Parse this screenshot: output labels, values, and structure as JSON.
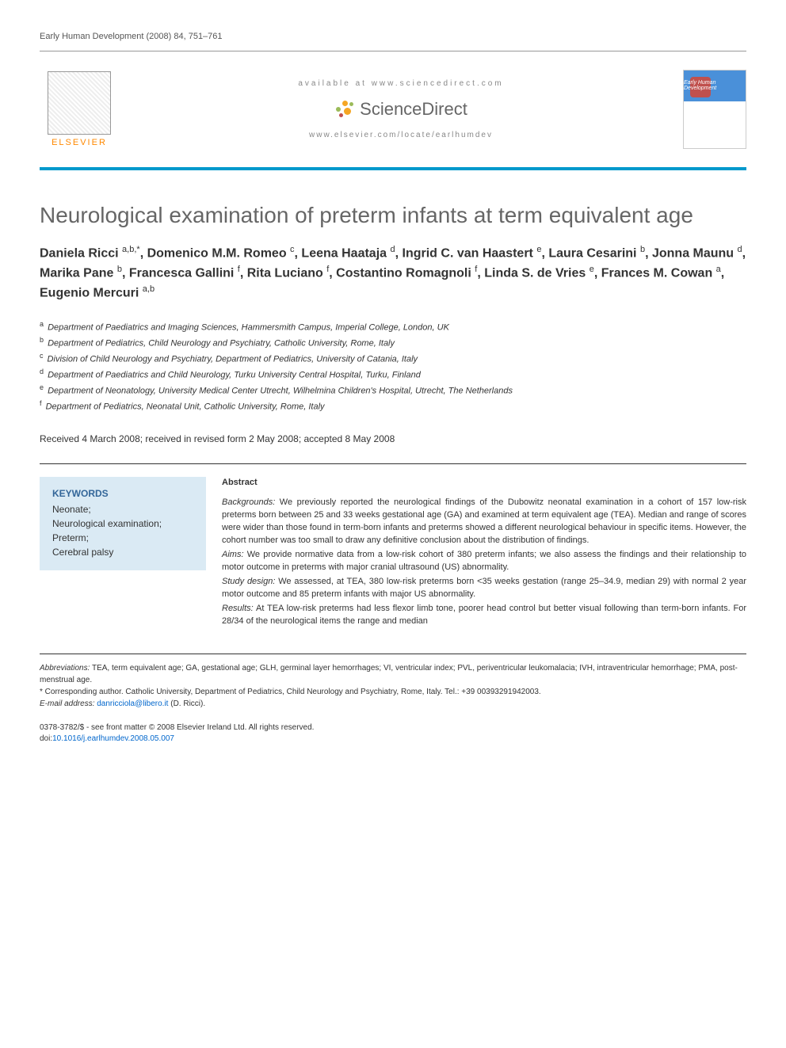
{
  "citation": "Early Human Development (2008) 84, 751–761",
  "header": {
    "available_at": "available at www.sciencedirect.com",
    "sd_brand": "ScienceDirect",
    "journal_url": "www.elsevier.com/locate/earlhumdev",
    "elsevier_label": "ELSEVIER",
    "cover_text": "Early Human Development"
  },
  "title": "Neurological examination of preterm infants at term equivalent age",
  "authors_html": "Daniela Ricci <sup>a,b,*</sup>, Domenico M.M. Romeo <sup>c</sup>, Leena Haataja <sup>d</sup>, Ingrid C. van Haastert <sup>e</sup>, Laura Cesarini <sup>b</sup>, Jonna Maunu <sup>d</sup>, Marika Pane <sup>b</sup>, Francesca Gallini <sup>f</sup>, Rita Luciano <sup>f</sup>, Costantino Romagnoli <sup>f</sup>, Linda S. de Vries <sup>e</sup>, Frances M. Cowan <sup>a</sup>, Eugenio Mercuri <sup>a,b</sup>",
  "affiliations": [
    {
      "key": "a",
      "text": "Department of Paediatrics and Imaging Sciences, Hammersmith Campus, Imperial College, London, UK"
    },
    {
      "key": "b",
      "text": "Department of Pediatrics, Child Neurology and Psychiatry, Catholic University, Rome, Italy"
    },
    {
      "key": "c",
      "text": "Division of Child Neurology and Psychiatry, Department of Pediatrics, University of Catania, Italy"
    },
    {
      "key": "d",
      "text": "Department of Paediatrics and Child Neurology, Turku University Central Hospital, Turku, Finland"
    },
    {
      "key": "e",
      "text": "Department of Neonatology, University Medical Center Utrecht, Wilhelmina Children's Hospital, Utrecht, The Netherlands"
    },
    {
      "key": "f",
      "text": "Department of Pediatrics, Neonatal Unit, Catholic University, Rome, Italy"
    }
  ],
  "dates": "Received 4 March 2008; received in revised form 2 May 2008; accepted 8 May 2008",
  "keywords": {
    "heading": "KEYWORDS",
    "items": [
      "Neonate;",
      "Neurological examination;",
      "Preterm;",
      "Cerebral palsy"
    ]
  },
  "abstract": {
    "heading": "Abstract",
    "sections": [
      {
        "label": "Backgrounds:",
        "text": "We previously reported the neurological findings of the Dubowitz neonatal examination in a cohort of 157 low-risk preterms born between 25 and 33 weeks gestational age (GA) and examined at term equivalent age (TEA). Median and range of scores were wider than those found in term-born infants and preterms showed a different neurological behaviour in specific items. However, the cohort number was too small to draw any definitive conclusion about the distribution of findings."
      },
      {
        "label": "Aims:",
        "text": "We provide normative data from a low-risk cohort of 380 preterm infants; we also assess the findings and their relationship to motor outcome in preterms with major cranial ultrasound (US) abnormality."
      },
      {
        "label": "Study design:",
        "text": "We assessed, at TEA, 380 low-risk preterms born <35 weeks gestation (range 25–34.9, median 29) with normal 2 year motor outcome and 85 preterm infants with major US abnormality."
      },
      {
        "label": "Results:",
        "text": "At TEA low-risk preterms had less flexor limb tone, poorer head control but better visual following than term-born infants. For 28/34 of the neurological items the range and median"
      }
    ]
  },
  "footer": {
    "abbrev_label": "Abbreviations:",
    "abbrev_text": "TEA, term equivalent age; GA, gestational age; GLH, germinal layer hemorrhages; VI, ventricular index; PVL, periventricular leukomalacia; IVH, intraventricular hemorrhage; PMA, post-menstrual age.",
    "corr_label": "* Corresponding author.",
    "corr_text": "Catholic University, Department of Pediatrics, Child Neurology and Psychiatry, Rome, Italy. Tel.: +39 00393291942003.",
    "email_label": "E-mail address:",
    "email": "danricciola@libero.it",
    "email_author": "(D. Ricci)."
  },
  "copyright": {
    "line1": "0378-3782/$ - see front matter © 2008 Elsevier Ireland Ltd. All rights reserved.",
    "doi_label": "doi:",
    "doi": "10.1016/j.earlhumdev.2008.05.007"
  },
  "colors": {
    "accent_bar": "#0099cc",
    "title_gray": "#666666",
    "keywords_bg": "#daeaf4",
    "keywords_heading": "#336699",
    "link": "#0066cc",
    "elsevier_orange": "#ff8800"
  }
}
